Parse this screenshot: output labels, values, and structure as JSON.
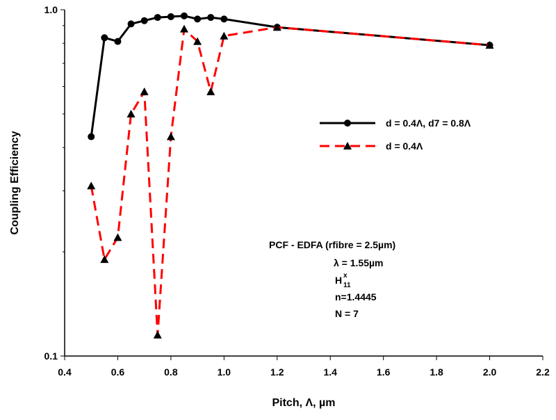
{
  "chart_data": {
    "type": "line",
    "x_label": "Pitch, Λ, µm",
    "y_label": "Coupling Efficiency",
    "x": [
      0.5,
      0.55,
      0.6,
      0.65,
      0.7,
      0.75,
      0.8,
      0.85,
      0.9,
      0.95,
      1.0,
      1.2,
      2.0
    ],
    "series": [
      {
        "name": "d = 0.4Λ, d7 = 0.8Λ",
        "color": "#000000",
        "dash": "none",
        "marker": "circle",
        "values": [
          0.43,
          0.83,
          0.81,
          0.91,
          0.93,
          0.95,
          0.955,
          0.96,
          0.94,
          0.95,
          0.94,
          0.89,
          0.79
        ]
      },
      {
        "name": "d = 0.4Λ",
        "color": "#ff0000",
        "dash": "dashed",
        "marker": "triangle",
        "values": [
          0.31,
          0.19,
          0.22,
          0.5,
          0.58,
          0.115,
          0.43,
          0.88,
          0.81,
          0.58,
          0.84,
          0.89,
          0.79
        ]
      }
    ],
    "xlim": [
      0.4,
      2.2
    ],
    "xticks": [
      0.4,
      0.6,
      0.8,
      {
        "value": 1.0,
        "label": "1.0"
      },
      1.2,
      1.4,
      1.6,
      1.8,
      {
        "value": 2.0,
        "label": "2.0"
      },
      2.2
    ],
    "ylim": [
      0.1,
      1
    ],
    "yticks": [
      0.1,
      {
        "value": 1,
        "label": "1.0"
      }
    ],
    "y_scale": "log",
    "grid": false,
    "legend_position": "right",
    "annotations": [
      "PCF - EDFA (rfibre = 2.5µm)",
      "λ = 1.55µm",
      "H",
      "x",
      "11",
      "n=1.4445",
      "N = 7"
    ]
  }
}
